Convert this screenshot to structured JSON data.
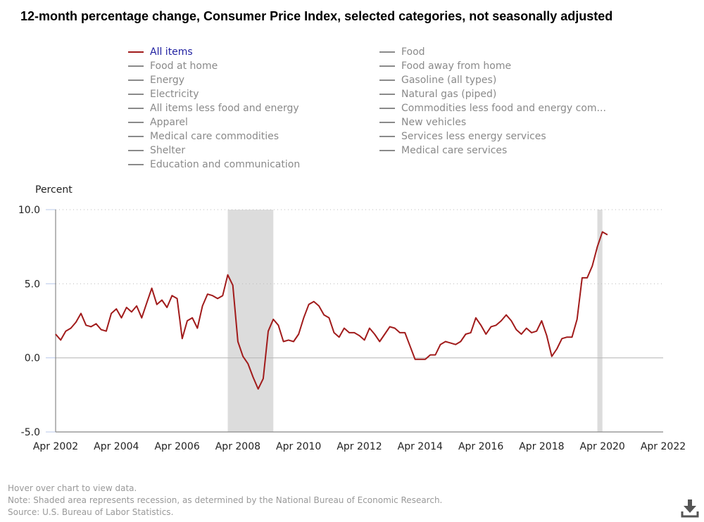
{
  "title": "12-month percentage change, Consumer Price Index, selected categories, not seasonally adjusted",
  "legend": {
    "left": [
      {
        "label": "All items",
        "active": true
      },
      {
        "label": "Food at home",
        "active": false
      },
      {
        "label": "Energy",
        "active": false
      },
      {
        "label": "Electricity",
        "active": false
      },
      {
        "label": "All items less food and energy",
        "active": false
      },
      {
        "label": "Apparel",
        "active": false
      },
      {
        "label": "Medical care commodities",
        "active": false
      },
      {
        "label": "Shelter",
        "active": false
      },
      {
        "label": "Education and communication",
        "active": false
      }
    ],
    "right": [
      {
        "label": "Food",
        "active": false
      },
      {
        "label": "Food away from home",
        "active": false
      },
      {
        "label": "Gasoline (all types)",
        "active": false
      },
      {
        "label": "Natural gas (piped)",
        "active": false
      },
      {
        "label": "Commodities less food and energy com...",
        "active": false
      },
      {
        "label": "New vehicles",
        "active": false
      },
      {
        "label": "Services less energy services",
        "active": false
      },
      {
        "label": "Medical care services",
        "active": false
      }
    ]
  },
  "notes": {
    "hover": "Hover over chart to view data.",
    "note": "Note: Shaded area represents recession, as determined by the National Bureau of Economic Research.",
    "source": "Source: U.S. Bureau of Labor Statistics."
  },
  "icons": {
    "download": "download-icon"
  },
  "colors": {
    "series": "#a11b1b",
    "recession": "#dcdcdc",
    "legend_active": "#1f1fa0",
    "legend_inactive": "#8a8a8a"
  },
  "chart_data": {
    "type": "line",
    "title": "12-month percentage change, Consumer Price Index, selected categories, not seasonally adjusted",
    "ylabel": "Percent",
    "xlabel": "",
    "ylim": [
      -5,
      10
    ],
    "yticks": [
      10.0,
      5.0,
      0.0,
      -5.0
    ],
    "ytick_labels": [
      "10.0",
      "5.0",
      "0.0",
      "-5.0"
    ],
    "xrange": [
      "Apr 2002",
      "Apr 2022"
    ],
    "xticks": [
      "Apr 2002",
      "Apr 2004",
      "Apr 2006",
      "Apr 2008",
      "Apr 2010",
      "Apr 2012",
      "Apr 2014",
      "Apr 2016",
      "Apr 2018",
      "Apr 2020",
      "Apr 2022"
    ],
    "grid": "horizontal dotted",
    "legend": "top",
    "recessions": [
      {
        "start": "Dec 2007",
        "end": "Jun 2009"
      },
      {
        "start": "Feb 2020",
        "end": "Apr 2020"
      }
    ],
    "series": [
      {
        "name": "All items",
        "x_start": "Apr 2002",
        "x_step_months": 2,
        "values": [
          1.6,
          1.2,
          1.8,
          2.0,
          2.4,
          3.0,
          2.2,
          2.1,
          2.3,
          1.9,
          1.8,
          3.0,
          3.3,
          2.7,
          3.4,
          3.1,
          3.5,
          2.7,
          3.7,
          4.7,
          3.6,
          3.9,
          3.4,
          4.2,
          4.0,
          1.3,
          2.5,
          2.7,
          2.0,
          3.5,
          4.3,
          4.2,
          4.0,
          4.2,
          5.6,
          4.9,
          1.1,
          0.1,
          -0.4,
          -1.3,
          -2.1,
          -1.4,
          1.8,
          2.6,
          2.2,
          1.1,
          1.2,
          1.1,
          1.6,
          2.7,
          3.6,
          3.8,
          3.5,
          2.9,
          2.7,
          1.7,
          1.4,
          2.0,
          1.7,
          1.7,
          1.5,
          1.2,
          2.0,
          1.6,
          1.1,
          1.6,
          2.1,
          2.0,
          1.7,
          1.7,
          0.8,
          -0.1,
          -0.1,
          -0.1,
          0.2,
          0.2,
          0.9,
          1.1,
          1.0,
          0.9,
          1.1,
          1.6,
          1.7,
          2.7,
          2.2,
          1.6,
          2.1,
          2.2,
          2.5,
          2.9,
          2.5,
          1.9,
          1.6,
          2.0,
          1.7,
          1.8,
          2.5,
          1.5,
          0.1,
          0.6,
          1.3,
          1.4,
          1.4,
          2.6,
          5.4,
          5.4,
          6.2,
          7.5,
          8.5,
          8.3
        ]
      }
    ]
  }
}
